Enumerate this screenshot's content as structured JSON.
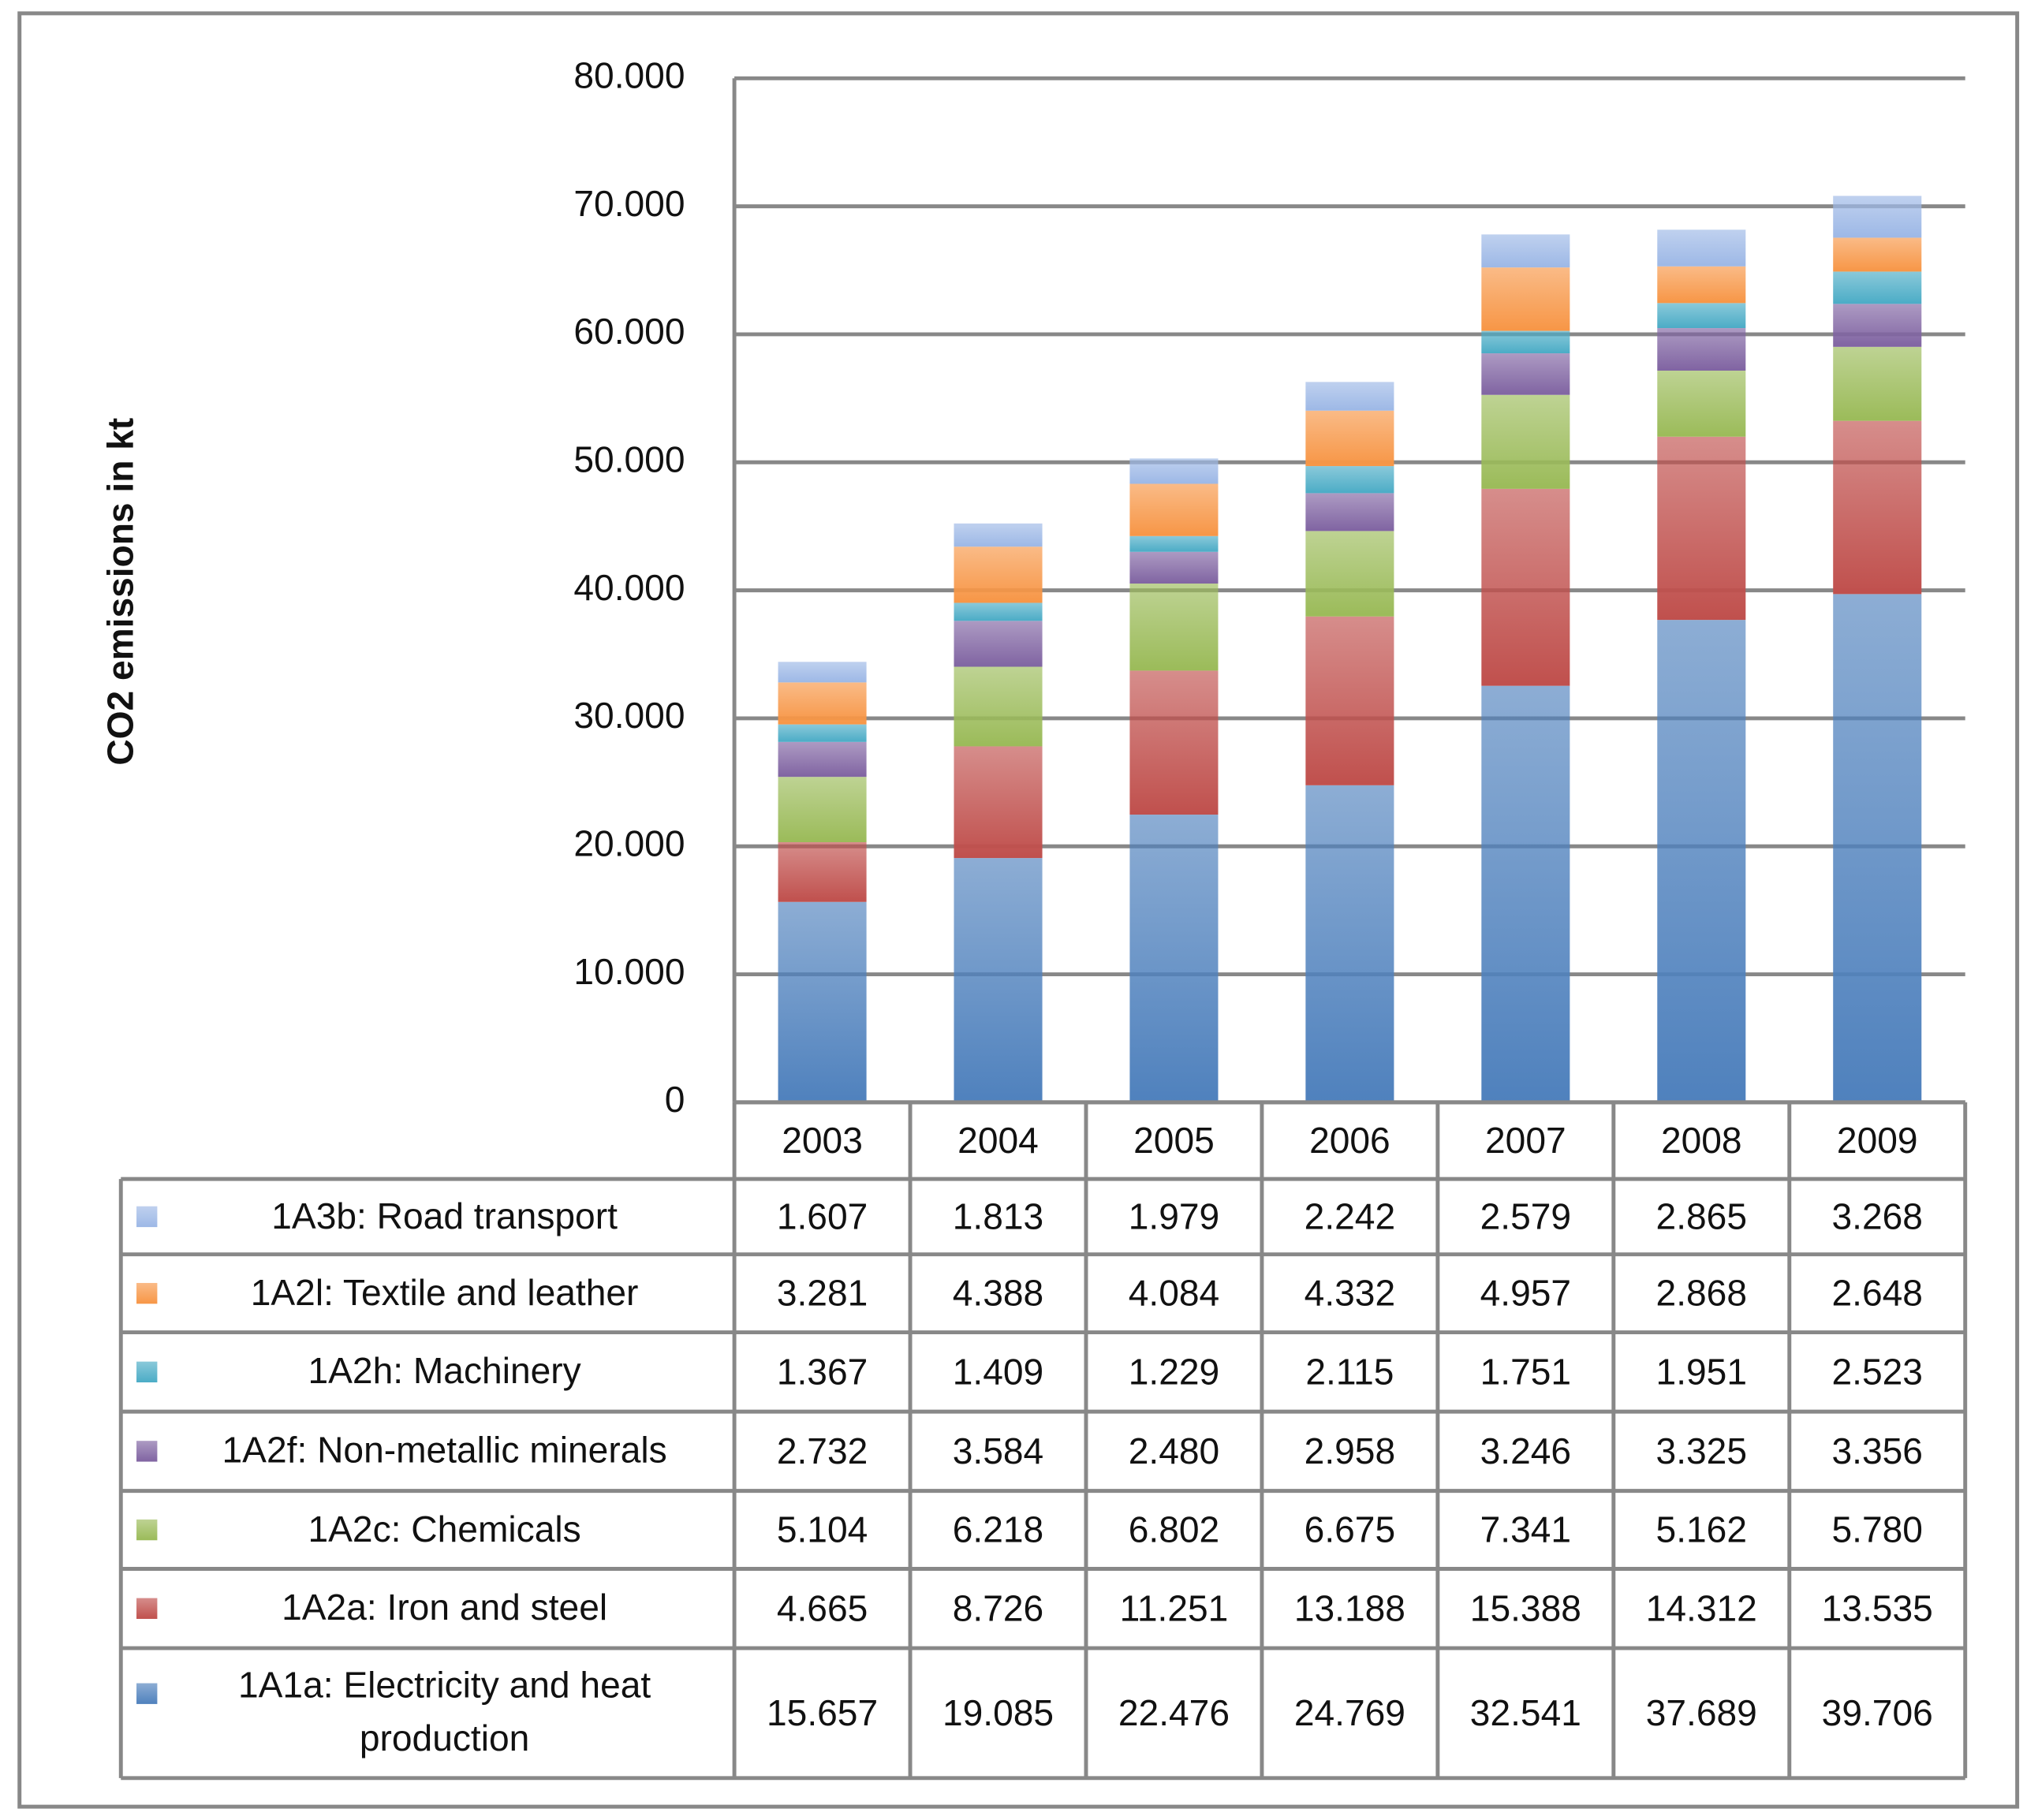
{
  "chart_data": {
    "type": "stacked-bar",
    "y_label": "CO2 emissions in kt",
    "categories": [
      "2003",
      "2004",
      "2005",
      "2006",
      "2007",
      "2008",
      "2009"
    ],
    "ylim": [
      0,
      80000
    ],
    "yticks": [
      0,
      {
        "value": 10000,
        "label": "10.000"
      },
      {
        "value": 20000,
        "label": "20.000"
      },
      {
        "value": 30000,
        "label": "30.000"
      },
      {
        "value": 40000,
        "label": "40.000"
      },
      {
        "value": 50000,
        "label": "50.000"
      },
      {
        "value": 60000,
        "label": "60.000"
      },
      {
        "value": 70000,
        "label": "70.000"
      },
      {
        "value": 80000,
        "label": "80.000"
      }
    ],
    "grid": true,
    "series": [
      {
        "name": "1A1a: Electricity and heat production",
        "color": "#4f81bd",
        "values": [
          15657,
          19085,
          22476,
          24769,
          32541,
          37689,
          39706
        ],
        "value_labels": [
          "15.657",
          "19.085",
          "22.476",
          "24.769",
          "32.541",
          "37.689",
          "39.706"
        ]
      },
      {
        "name": "1A2a: Iron and steel",
        "color": "#c0504d",
        "values": [
          4665,
          8726,
          11251,
          13188,
          15388,
          14312,
          13535
        ],
        "value_labels": [
          "4.665",
          "8.726",
          "11.251",
          "13.188",
          "15.388",
          "14.312",
          "13.535"
        ]
      },
      {
        "name": "1A2c: Chemicals",
        "color": "#9bbb59",
        "values": [
          5104,
          6218,
          6802,
          6675,
          7341,
          5162,
          5780
        ],
        "value_labels": [
          "5.104",
          "6.218",
          "6.802",
          "6.675",
          "7.341",
          "5.162",
          "5.780"
        ]
      },
      {
        "name": "1A2f: Non-metallic minerals",
        "color": "#8064a2",
        "values": [
          2732,
          3584,
          2480,
          2958,
          3246,
          3325,
          3356
        ],
        "value_labels": [
          "2.732",
          "3.584",
          "2.480",
          "2.958",
          "3.246",
          "3.325",
          "3.356"
        ]
      },
      {
        "name": "1A2h: Machinery",
        "color": "#4bacc6",
        "values": [
          1367,
          1409,
          1229,
          2115,
          1751,
          1951,
          2523
        ],
        "value_labels": [
          "1.367",
          "1.409",
          "1.229",
          "2.115",
          "1.751",
          "1.951",
          "2.523"
        ]
      },
      {
        "name": "1A2l: Textile and leather",
        "color": "#f79646",
        "values": [
          3281,
          4388,
          4084,
          4332,
          4957,
          2868,
          2648
        ],
        "value_labels": [
          "3.281",
          "4.388",
          "4.084",
          "4.332",
          "4.957",
          "2.868",
          "2.648"
        ]
      },
      {
        "name": "1A3b: Road transport",
        "color": "#9db8e6",
        "values": [
          1607,
          1813,
          1979,
          2242,
          2579,
          2865,
          3268
        ],
        "value_labels": [
          "1.607",
          "1.813",
          "1.979",
          "2.242",
          "2.579",
          "2.865",
          "3.268"
        ]
      }
    ]
  }
}
